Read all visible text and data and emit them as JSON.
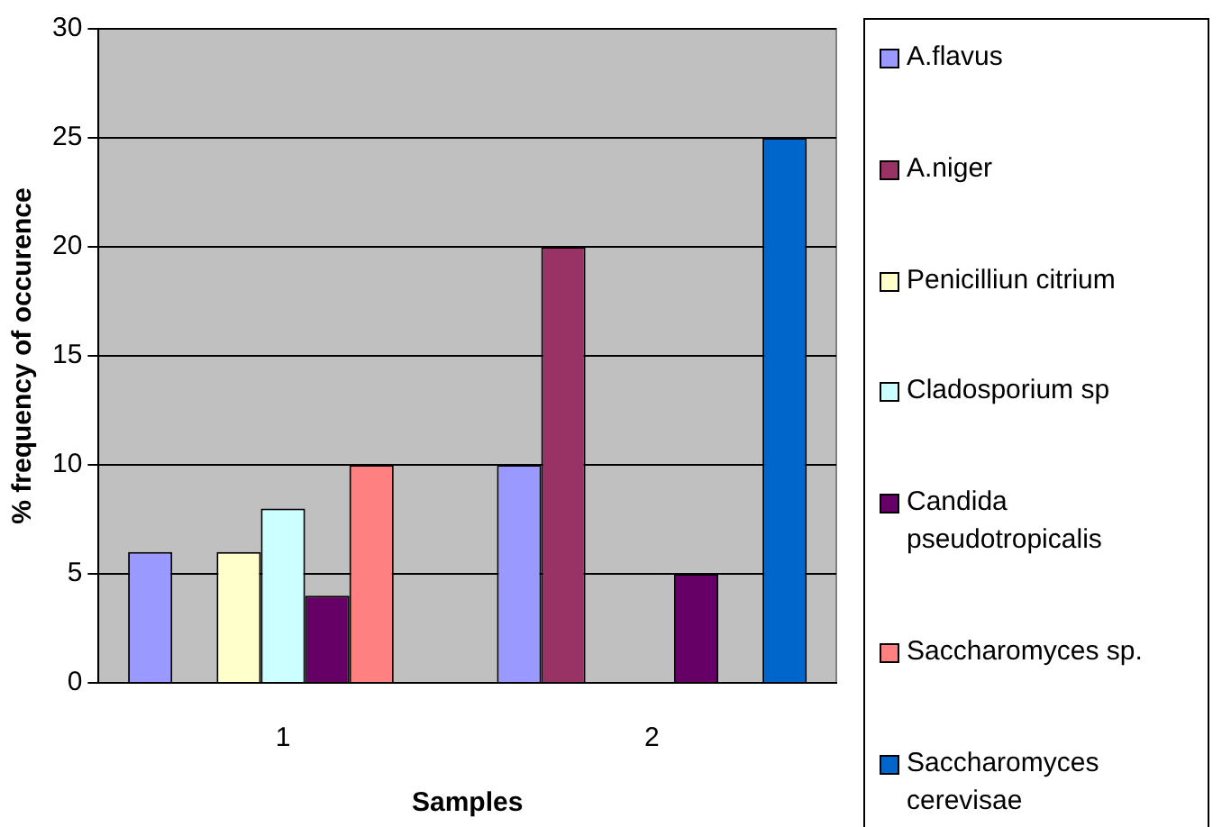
{
  "chart_data": {
    "type": "bar",
    "xlabel": "Samples",
    "ylabel": "% frequency of occurence",
    "categories": [
      "1",
      "2"
    ],
    "series": [
      {
        "name": "A.flavus",
        "color": "#9999ff",
        "values": [
          6,
          10
        ]
      },
      {
        "name": "A.niger",
        "color": "#993366",
        "values": [
          0,
          20
        ]
      },
      {
        "name": "Penicilliun citrium",
        "color": "#ffffcc",
        "values": [
          6,
          0
        ]
      },
      {
        "name": "Cladosporium sp",
        "color": "#ccffff",
        "values": [
          8,
          0
        ]
      },
      {
        "name": "Candida pseudotropicalis",
        "color": "#660066",
        "values": [
          4,
          5
        ]
      },
      {
        "name": "Saccharomyces sp.",
        "color": "#ff8080",
        "values": [
          10,
          0
        ]
      },
      {
        "name": "Saccharomyces cerevisae",
        "color": "#0066cc",
        "values": [
          0,
          25
        ]
      }
    ],
    "ylim": [
      0,
      30
    ],
    "yticks": [
      0,
      5,
      10,
      15,
      20,
      25,
      30
    ],
    "grid": "y",
    "legend": "right"
  }
}
